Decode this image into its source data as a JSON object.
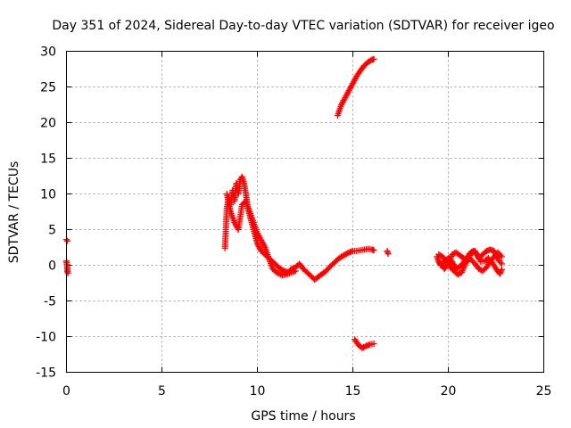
{
  "chart_data": {
    "type": "scatter",
    "title": "Day 351 of 2024, Sidereal Day-to-day VTEC variation (SDTVAR) for receiver igeo",
    "xlabel": "GPS time / hours",
    "ylabel": "SDTVAR / TECUs",
    "xlim": [
      0,
      25
    ],
    "ylim": [
      -15,
      30
    ],
    "xticks": [
      0,
      5,
      10,
      15,
      20,
      25
    ],
    "yticks": [
      -15,
      -10,
      -5,
      0,
      5,
      10,
      15,
      20,
      25,
      30
    ],
    "grid": true,
    "marker": "plus",
    "marker_color": "#ff0000",
    "series": [
      {
        "name": "SDTVAR",
        "segments": [
          [
            [
              0.0,
              3.6
            ],
            [
              0.05,
              3.4
            ]
          ],
          [
            [
              0.0,
              0.6
            ],
            [
              0.05,
              -0.5
            ],
            [
              0.05,
              -0.9
            ],
            [
              0.08,
              -1.1
            ]
          ],
          [
            [
              8.3,
              2.4
            ],
            [
              8.35,
              5.0
            ],
            [
              8.4,
              8.0
            ],
            [
              8.5,
              9.5
            ],
            [
              8.6,
              8.5
            ],
            [
              8.7,
              10.5
            ],
            [
              8.8,
              9.0
            ],
            [
              8.9,
              11.5
            ],
            [
              9.0,
              10.0
            ],
            [
              9.1,
              12.0
            ],
            [
              9.2,
              12.4
            ],
            [
              9.3,
              11.5
            ],
            [
              9.4,
              10.0
            ],
            [
              9.5,
              8.0
            ],
            [
              9.6,
              7.0
            ],
            [
              9.7,
              6.0
            ],
            [
              9.8,
              5.0
            ],
            [
              9.9,
              4.0
            ],
            [
              10.0,
              3.0
            ],
            [
              10.2,
              2.0
            ],
            [
              10.4,
              1.5
            ],
            [
              10.6,
              1.0
            ],
            [
              10.8,
              0.5
            ],
            [
              11.0,
              0.0
            ],
            [
              11.2,
              -0.5
            ],
            [
              11.4,
              -0.8
            ],
            [
              11.6,
              -1.0
            ],
            [
              11.8,
              -0.5
            ],
            [
              12.0,
              -0.3
            ],
            [
              12.2,
              0.2
            ],
            [
              12.4,
              -0.5
            ],
            [
              12.6,
              -1.0
            ],
            [
              12.8,
              -1.5
            ],
            [
              13.0,
              -2.0
            ],
            [
              13.2,
              -1.6
            ],
            [
              13.4,
              -1.2
            ],
            [
              13.6,
              -0.8
            ],
            [
              13.8,
              -0.2
            ],
            [
              14.0,
              0.3
            ],
            [
              14.2,
              0.8
            ],
            [
              14.4,
              1.2
            ],
            [
              14.6,
              1.5
            ],
            [
              14.8,
              1.8
            ],
            [
              15.0,
              2.0
            ],
            [
              15.2,
              2.0
            ],
            [
              15.4,
              2.1
            ],
            [
              15.6,
              2.2
            ],
            [
              15.8,
              2.3
            ],
            [
              16.0,
              2.2
            ],
            [
              16.1,
              2.1
            ]
          ],
          [
            [
              8.4,
              10.0
            ],
            [
              8.6,
              7.5
            ],
            [
              8.8,
              6.0
            ],
            [
              9.0,
              5.0
            ],
            [
              9.2,
              8.5
            ],
            [
              9.4,
              9.0
            ],
            [
              9.6,
              7.5
            ],
            [
              9.8,
              6.0
            ],
            [
              10.0,
              4.5
            ],
            [
              10.2,
              3.5
            ],
            [
              10.4,
              2.5
            ],
            [
              10.6,
              1.0
            ],
            [
              10.8,
              -0.5
            ],
            [
              11.0,
              -1.0
            ],
            [
              11.3,
              -1.4
            ],
            [
              11.6,
              -1.2
            ],
            [
              12.0,
              -0.8
            ]
          ],
          [
            [
              16.8,
              2.0
            ],
            [
              16.85,
              1.6
            ]
          ],
          [
            [
              14.2,
              21.0
            ],
            [
              14.4,
              22.5
            ],
            [
              14.6,
              23.5
            ],
            [
              14.8,
              24.5
            ],
            [
              15.0,
              25.5
            ],
            [
              15.2,
              26.5
            ],
            [
              15.4,
              27.3
            ],
            [
              15.6,
              28.0
            ],
            [
              15.8,
              28.5
            ],
            [
              16.0,
              28.8
            ],
            [
              16.1,
              28.9
            ]
          ],
          [
            [
              15.1,
              -10.4
            ],
            [
              15.3,
              -11.2
            ],
            [
              15.5,
              -11.6
            ],
            [
              15.7,
              -11.3
            ],
            [
              15.9,
              -11.1
            ],
            [
              16.1,
              -11.0
            ]
          ],
          [
            [
              19.4,
              1.2
            ],
            [
              19.5,
              0.5
            ],
            [
              19.6,
              0.0
            ],
            [
              19.8,
              0.6
            ],
            [
              20.0,
              1.0
            ],
            [
              20.2,
              0.5
            ],
            [
              20.4,
              -0.5
            ],
            [
              20.6,
              -0.2
            ],
            [
              20.8,
              0.4
            ],
            [
              21.0,
              1.2
            ],
            [
              21.2,
              0.8
            ],
            [
              21.4,
              0.2
            ],
            [
              21.6,
              -0.5
            ],
            [
              21.8,
              -0.8
            ],
            [
              22.0,
              -0.3
            ],
            [
              22.2,
              0.6
            ],
            [
              22.4,
              1.2
            ],
            [
              22.6,
              1.8
            ],
            [
              22.8,
              1.2
            ]
          ],
          [
            [
              19.5,
              1.5
            ],
            [
              19.7,
              1.2
            ],
            [
              19.9,
              0.6
            ],
            [
              20.1,
              -0.3
            ],
            [
              20.3,
              -0.8
            ],
            [
              20.5,
              -1.3
            ],
            [
              20.7,
              -1.0
            ],
            [
              20.9,
              0.3
            ],
            [
              21.1,
              1.6
            ],
            [
              21.3,
              2.0
            ],
            [
              21.5,
              1.5
            ],
            [
              21.7,
              0.5
            ],
            [
              21.9,
              0.6
            ],
            [
              22.1,
              1.0
            ],
            [
              22.3,
              0.4
            ],
            [
              22.5,
              -0.5
            ],
            [
              22.7,
              -1.2
            ],
            [
              22.8,
              -0.6
            ]
          ],
          [
            [
              19.6,
              0.2
            ],
            [
              19.8,
              -0.5
            ],
            [
              20.0,
              0.2
            ],
            [
              20.2,
              1.5
            ],
            [
              20.4,
              1.8
            ],
            [
              20.6,
              1.4
            ],
            [
              20.8,
              1.0
            ],
            [
              21.0,
              0.5
            ],
            [
              21.2,
              1.8
            ],
            [
              21.4,
              2.0
            ],
            [
              21.6,
              1.0
            ],
            [
              21.8,
              1.5
            ],
            [
              22.0,
              2.0
            ],
            [
              22.2,
              2.2
            ],
            [
              22.4,
              2.0
            ],
            [
              22.6,
              0.8
            ],
            [
              22.8,
              0.2
            ]
          ]
        ]
      }
    ]
  }
}
